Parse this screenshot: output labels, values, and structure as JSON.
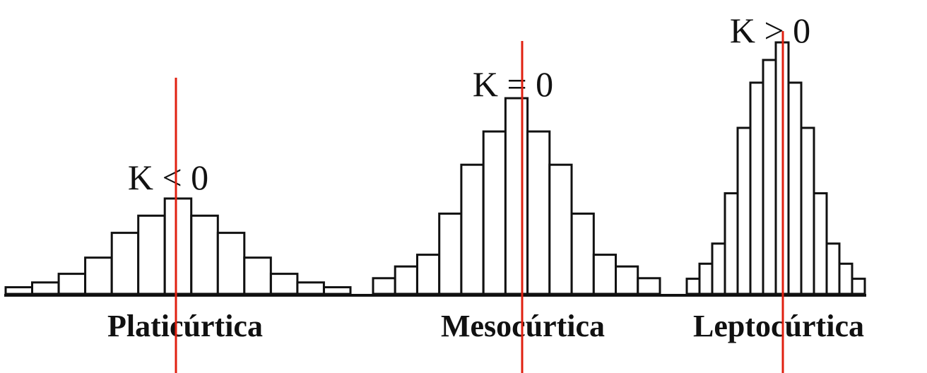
{
  "colors": {
    "ink": "#111111",
    "mean_line": "#e02010",
    "bar_fill": "#ffffff"
  },
  "distributions": [
    {
      "name": "Platicúrtica",
      "kurtosis_label": "K < 0",
      "relative_heights": [
        0.07,
        0.12,
        0.21,
        0.38,
        0.64,
        0.82,
        1.0,
        0.82,
        0.64,
        0.38,
        0.21,
        0.12,
        0.07
      ]
    },
    {
      "name": "Mesocúrtica",
      "kurtosis_label": "K = 0",
      "relative_heights": [
        0.08,
        0.14,
        0.2,
        0.41,
        0.66,
        0.83,
        1.0,
        0.83,
        0.66,
        0.41,
        0.2,
        0.14,
        0.08
      ]
    },
    {
      "name": "Leptocúrtica",
      "kurtosis_label": "K > 0",
      "relative_heights": [
        0.06,
        0.12,
        0.2,
        0.4,
        0.66,
        0.84,
        0.93,
        1.0,
        0.84,
        0.66,
        0.4,
        0.2,
        0.12,
        0.06
      ]
    }
  ]
}
